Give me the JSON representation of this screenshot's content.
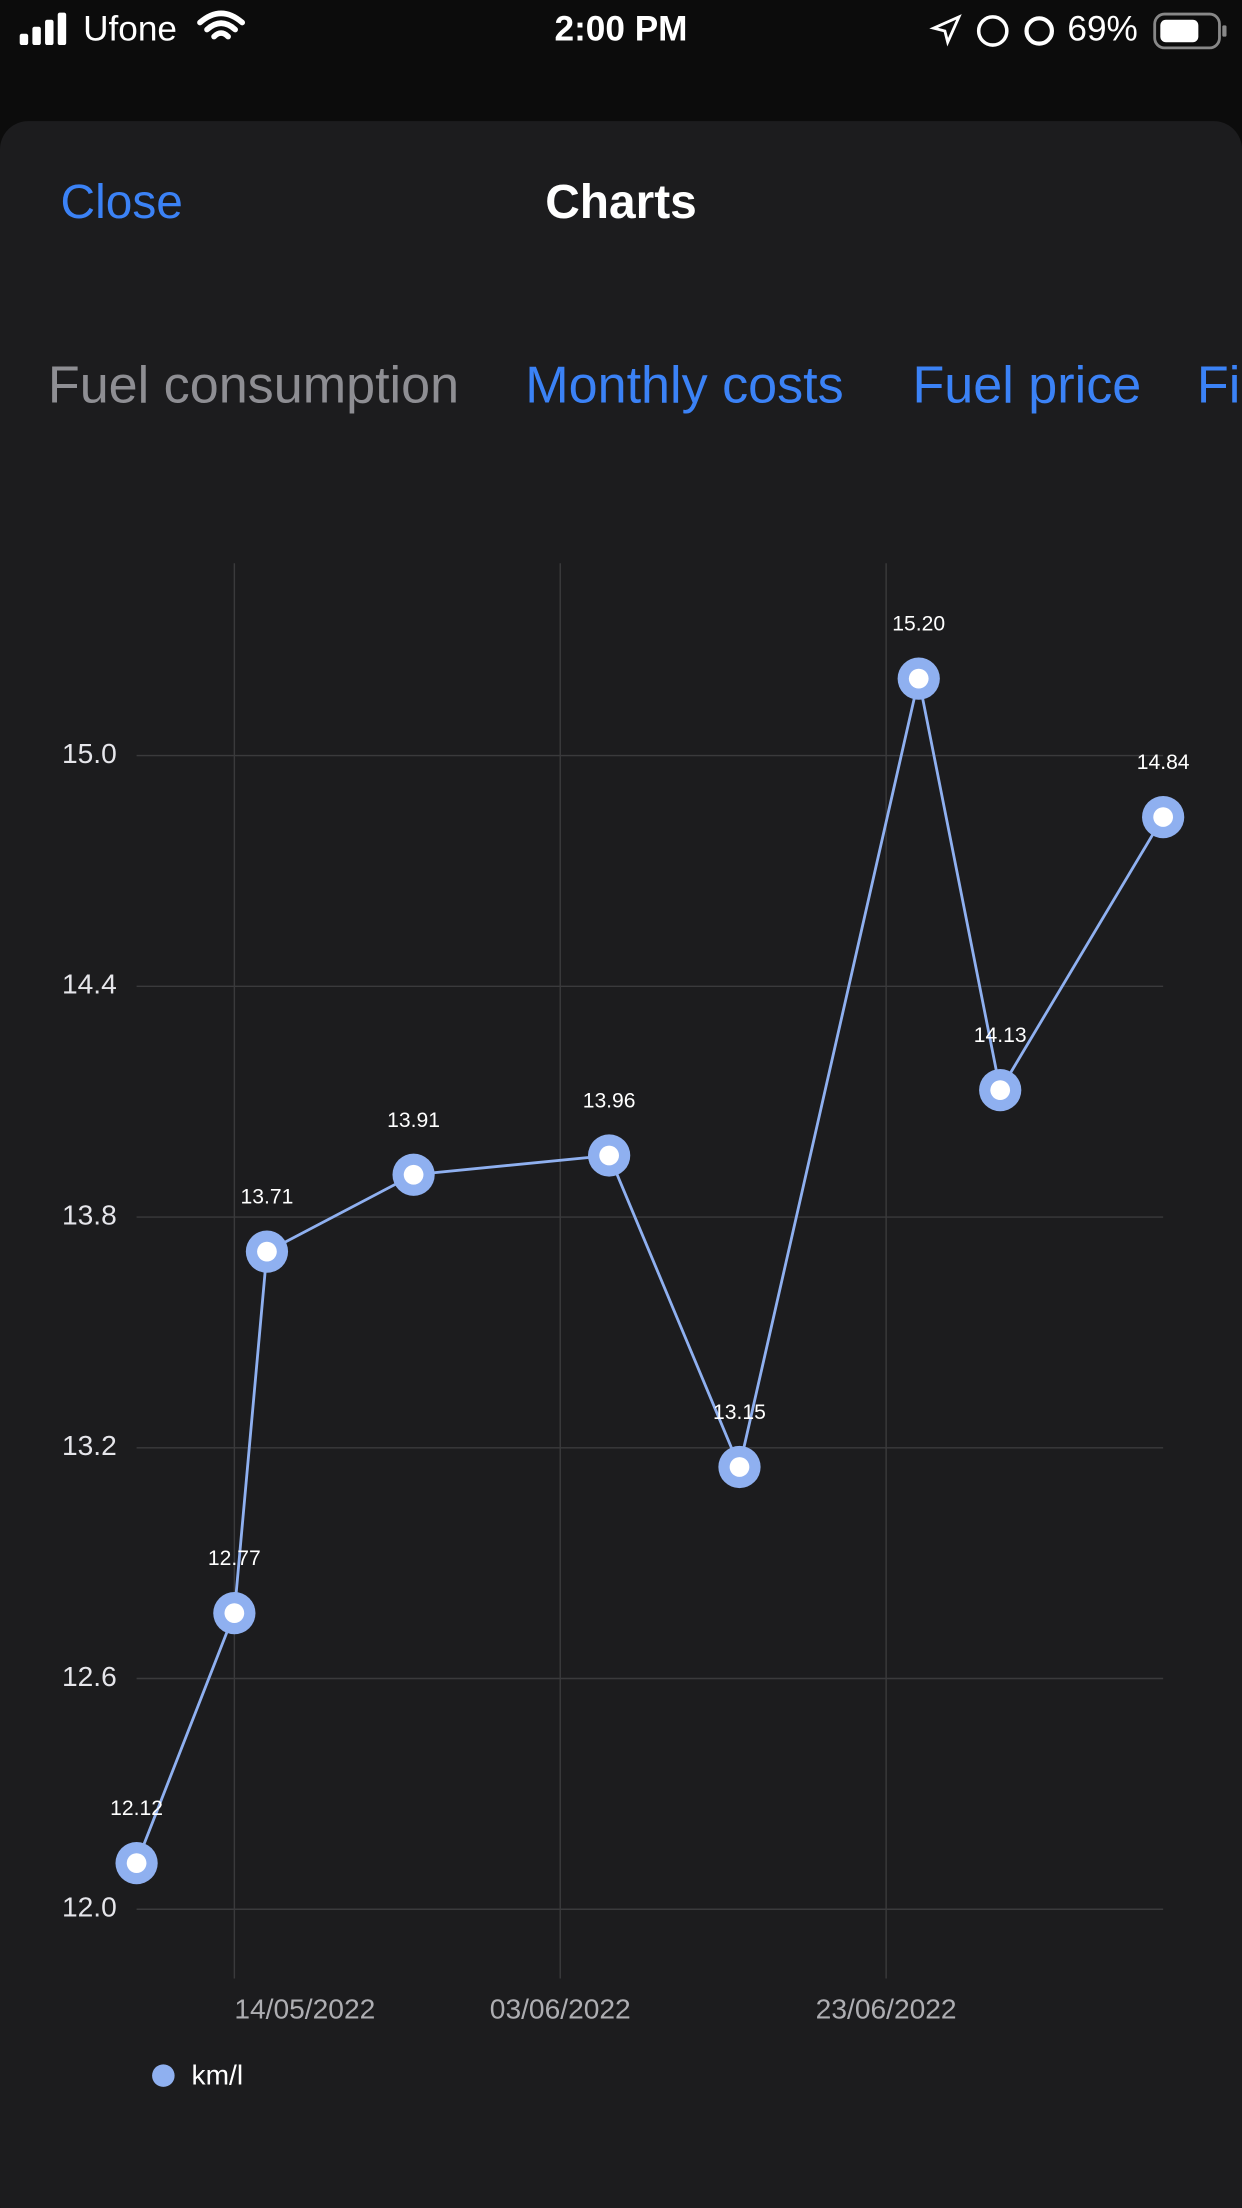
{
  "status_bar": {
    "carrier": "Ufone",
    "time": "2:00 PM",
    "battery": "69%"
  },
  "header": {
    "close": "Close",
    "title": "Charts"
  },
  "tabs": [
    "Fuel consumption",
    "Monthly costs",
    "Fuel price",
    "Fi"
  ],
  "chart_data": {
    "type": "line",
    "x": [
      "2022-05-08",
      "2022-05-14",
      "2022-05-16",
      "2022-05-25",
      "2022-06-06",
      "2022-06-14",
      "2022-06-25",
      "2022-06-30",
      "2022-07-10"
    ],
    "series": [
      {
        "name": "km/l",
        "color": "#8fb0f0",
        "values": [
          12.12,
          12.77,
          13.71,
          13.91,
          13.96,
          13.15,
          15.2,
          14.13,
          14.84
        ],
        "value_labels": [
          "12.12",
          "12.77",
          "13.71",
          "13.91",
          "13.96",
          "13.15",
          "15.20",
          "14.13",
          "14.84"
        ]
      }
    ],
    "xlim": [
      "2022-05-08",
      "2022-07-10"
    ],
    "xticks": [
      {
        "value": "2022-05-14",
        "label": "14/05/2022"
      },
      {
        "value": "2022-06-03",
        "label": "03/06/2022"
      },
      {
        "value": "2022-06-23",
        "label": "23/06/2022"
      }
    ],
    "ylim": [
      11.82,
      15.5
    ],
    "yticks": [
      {
        "value": 12,
        "label": "12.0"
      },
      {
        "value": 12.6,
        "label": "12.6"
      },
      {
        "value": 13.2,
        "label": "13.2"
      },
      {
        "value": 13.8,
        "label": "13.8"
      },
      {
        "value": 14.4,
        "label": "14.4"
      },
      {
        "value": 15,
        "label": "15.0"
      }
    ],
    "grid": true
  }
}
